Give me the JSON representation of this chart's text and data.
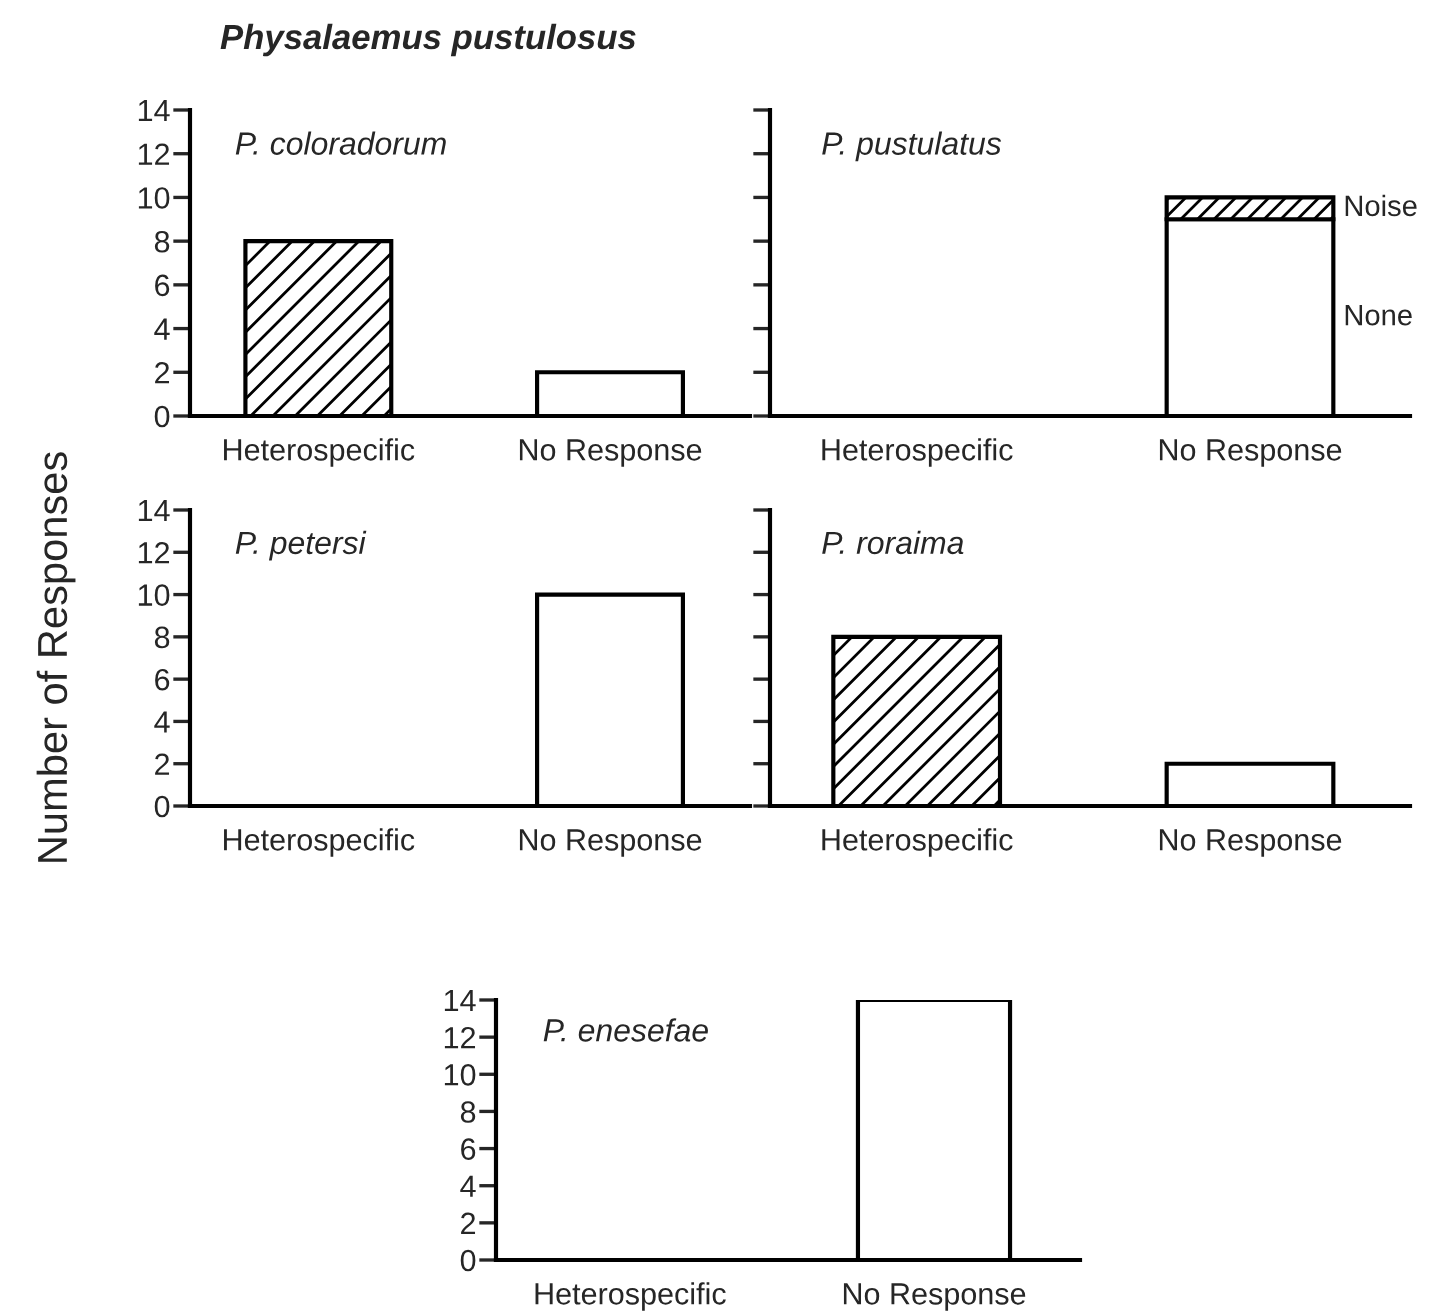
{
  "chart_data": [
    {
      "type": "bar",
      "title": "P. coloradorum",
      "annotations": [
        "Physalaemus pustulosus"
      ],
      "categories": [
        "Heterospecific",
        "No Response"
      ],
      "values": [
        8,
        2
      ],
      "colors": [
        "#000000",
        "#ffffff"
      ],
      "ylim": [
        0,
        14
      ],
      "yticks": [
        0,
        2,
        4,
        6,
        8,
        10,
        12,
        14
      ],
      "grid": false,
      "legend": false
    },
    {
      "type": "bar",
      "title": "P. pustulatus",
      "categories": [
        "Heterospecific",
        "No Response"
      ],
      "stacked": true,
      "series": [
        {
          "name": "None",
          "color": "#ffffff",
          "values": [
            0,
            9
          ]
        },
        {
          "name": "Noise",
          "color": "#000000",
          "values": [
            0,
            1
          ]
        }
      ],
      "ylim": [
        0,
        14
      ],
      "yticks": [
        0,
        2,
        4,
        6,
        8,
        10,
        12,
        14
      ],
      "tick_labels": "x",
      "grid": false,
      "legend": false
    },
    {
      "type": "bar",
      "title": "P. petersi",
      "ylabel": "Number of Responses",
      "categories": [
        "Heterospecific",
        "No Response"
      ],
      "values": [
        0,
        10
      ],
      "colors": [
        "#ffffff",
        "#ffffff"
      ],
      "ylim": [
        0,
        14
      ],
      "yticks": [
        0,
        2,
        4,
        6,
        8,
        10,
        12,
        14
      ],
      "grid": false,
      "legend": false
    },
    {
      "type": "bar",
      "title": "P. roraima",
      "categories": [
        "Heterospecific",
        "No Response"
      ],
      "values": [
        8,
        2
      ],
      "colors": [
        "#000000",
        "#ffffff"
      ],
      "ylim": [
        0,
        14
      ],
      "yticks": [
        0,
        2,
        4,
        6,
        8,
        10,
        12,
        14
      ],
      "tick_labels": "x",
      "grid": false,
      "legend": false
    },
    {
      "type": "bar",
      "title": "P. enesefae",
      "categories": [
        "Heterospecific",
        "No Response"
      ],
      "values": [
        0,
        14
      ],
      "colors": [
        "#ffffff",
        "#ffffff"
      ],
      "ylim": [
        0,
        14
      ],
      "yticks": [
        0,
        2,
        4,
        6,
        8,
        10,
        12,
        14
      ],
      "grid": false,
      "legend": false
    }
  ]
}
